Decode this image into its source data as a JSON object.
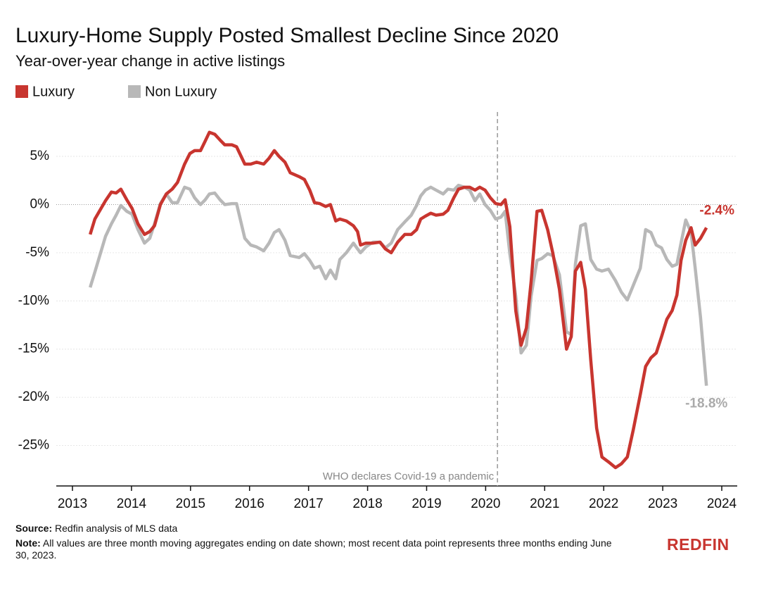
{
  "chart_data": {
    "type": "line",
    "title": "Luxury-Home Supply Posted Smallest Decline Since 2020",
    "subtitle": "Year-over-year change in active listings",
    "x": [
      2013.3,
      2013.38,
      2013.56,
      2013.66,
      2013.74,
      2013.82,
      2013.92,
      2014.01,
      2014.11,
      2014.22,
      2014.31,
      2014.39,
      2014.49,
      2014.59,
      2014.69,
      2014.78,
      2014.9,
      2014.99,
      2015.07,
      2015.17,
      2015.25,
      2015.32,
      2015.41,
      2015.5,
      2015.58,
      2015.7,
      2015.78,
      2015.92,
      2016.02,
      2016.12,
      2016.24,
      2016.33,
      2016.42,
      2016.5,
      2016.6,
      2016.69,
      2016.84,
      2016.93,
      2017.02,
      2017.1,
      2017.19,
      2017.29,
      2017.37,
      2017.46,
      2017.53,
      2017.64,
      2017.76,
      2017.83,
      2017.88,
      2017.97,
      2018.09,
      2018.21,
      2018.3,
      2018.4,
      2018.51,
      2018.63,
      2018.74,
      2018.83,
      2018.9,
      2018.98,
      2019.07,
      2019.16,
      2019.28,
      2019.36,
      2019.46,
      2019.54,
      2019.64,
      2019.73,
      2019.82,
      2019.9,
      2019.99,
      2020.08,
      2020.17,
      2020.26,
      2020.33,
      2020.41,
      2020.51,
      2020.6,
      2020.69,
      2020.77,
      2020.87,
      2020.95,
      2021.05,
      2021.14,
      2021.25,
      2021.37,
      2021.45,
      2021.52,
      2021.61,
      2021.69,
      2021.78,
      2021.88,
      2021.97,
      2022.08,
      2022.2,
      2022.3,
      2022.4,
      2022.5,
      2022.62,
      2022.71,
      2022.8,
      2022.89,
      2022.98,
      2023.07,
      2023.16,
      2023.24,
      2023.31,
      2023.39,
      2023.48,
      2023.55,
      2023.64,
      2023.74
    ],
    "series": [
      {
        "name": "Luxury",
        "color": "#c8352f",
        "end_label": "-2.4%",
        "values": [
          -3.1,
          -1.5,
          0.4,
          1.3,
          1.2,
          1.6,
          0.5,
          -0.4,
          -2.0,
          -3.1,
          -2.8,
          -2.2,
          0,
          1.1,
          1.6,
          2.3,
          4.2,
          5.3,
          5.6,
          5.6,
          6.6,
          7.5,
          7.3,
          6.7,
          6.2,
          6.2,
          6.0,
          4.2,
          4.2,
          4.4,
          4.2,
          4.8,
          5.6,
          5.0,
          4.4,
          3.3,
          2.9,
          2.6,
          1.5,
          0.2,
          0.1,
          -0.2,
          0,
          -1.7,
          -1.5,
          -1.7,
          -2.2,
          -2.8,
          -4.2,
          -4.0,
          -4.0,
          -3.9,
          -4.6,
          -5.0,
          -3.9,
          -3.1,
          -3.1,
          -2.6,
          -1.5,
          -1.2,
          -0.9,
          -1.1,
          -1.0,
          -0.6,
          0.7,
          1.6,
          1.8,
          1.8,
          1.5,
          1.8,
          1.5,
          0.7,
          0.1,
          0,
          0.5,
          -2.3,
          -11.0,
          -14.6,
          -12.8,
          -8.0,
          -0.7,
          -0.6,
          -2.6,
          -5.1,
          -8.8,
          -15.0,
          -13.7,
          -6.9,
          -6.0,
          -8.8,
          -16.1,
          -23.2,
          -26.2,
          -26.7,
          -27.3,
          -26.9,
          -26.2,
          -23.4,
          -19.7,
          -16.8,
          -15.9,
          -15.4,
          -13.7,
          -11.9,
          -11.0,
          -9.4,
          -5.8,
          -3.7,
          -2.4,
          -4.2,
          -3.5,
          -2.4
        ]
      },
      {
        "name": "Non Luxury",
        "color": "#b8b8b8",
        "end_label": "-18.8%",
        "values": [
          -8.6,
          -7.0,
          -3.3,
          -2.0,
          -1.1,
          -0.1,
          -0.7,
          -1.0,
          -2.6,
          -4.0,
          -3.5,
          -2.0,
          0.1,
          1.1,
          0.2,
          0.2,
          1.8,
          1.6,
          0.7,
          0,
          0.5,
          1.1,
          1.2,
          0.5,
          0,
          0.1,
          0.1,
          -3.5,
          -4.2,
          -4.4,
          -4.8,
          -4.0,
          -2.9,
          -2.6,
          -3.7,
          -5.3,
          -5.5,
          -5.1,
          -5.8,
          -6.6,
          -6.4,
          -7.7,
          -6.8,
          -7.7,
          -5.7,
          -5.0,
          -4.0,
          -4.6,
          -5.0,
          -4.4,
          -3.9,
          -3.9,
          -4.5,
          -4.0,
          -2.6,
          -1.8,
          -1.1,
          -0.1,
          0.9,
          1.5,
          1.8,
          1.5,
          1.1,
          1.6,
          1.5,
          2.0,
          1.8,
          1.5,
          0.4,
          1.1,
          0,
          -0.6,
          -1.5,
          -1.3,
          -0.7,
          -5.1,
          -9.5,
          -15.4,
          -14.6,
          -9.5,
          -5.8,
          -5.6,
          -5.1,
          -5.3,
          -7.3,
          -13.2,
          -13.5,
          -6.2,
          -2.2,
          -2.0,
          -5.7,
          -6.7,
          -6.9,
          -6.7,
          -7.9,
          -9.1,
          -9.9,
          -8.4,
          -6.6,
          -2.6,
          -2.9,
          -4.2,
          -4.5,
          -5.7,
          -6.4,
          -6.2,
          -4.0,
          -1.6,
          -2.9,
          -6.6,
          -11.7,
          -18.8
        ]
      }
    ],
    "xlim": [
      2012.726,
      2024.262
    ],
    "xticks": [
      2013,
      2014,
      2015,
      2016,
      2017,
      2018,
      2019,
      2020,
      2021,
      2022,
      2023,
      2024
    ],
    "ylim": [
      -29.2,
      9.9
    ],
    "yticks": [
      {
        "value": 5,
        "label": "5%"
      },
      {
        "value": 0,
        "label": "0%"
      },
      {
        "value": -5,
        "label": "-5%"
      },
      {
        "value": -10,
        "label": "-10%"
      },
      {
        "value": -15,
        "label": "-15%"
      },
      {
        "value": -20,
        "label": "-20%"
      },
      {
        "value": -25,
        "label": "-25%"
      }
    ],
    "grid": true,
    "legend": "top-left",
    "event": {
      "x": 2020.2,
      "label": "WHO declares Covid-19 a pandemic"
    }
  },
  "footer": {
    "source_label": "Source:",
    "source": "Redfin analysis of MLS data",
    "note_label": "Note:",
    "note": "All values are three month moving aggregates ending on date shown; most recent data point represents three months ending June 30, 2023.",
    "logo": "REDFIN"
  }
}
